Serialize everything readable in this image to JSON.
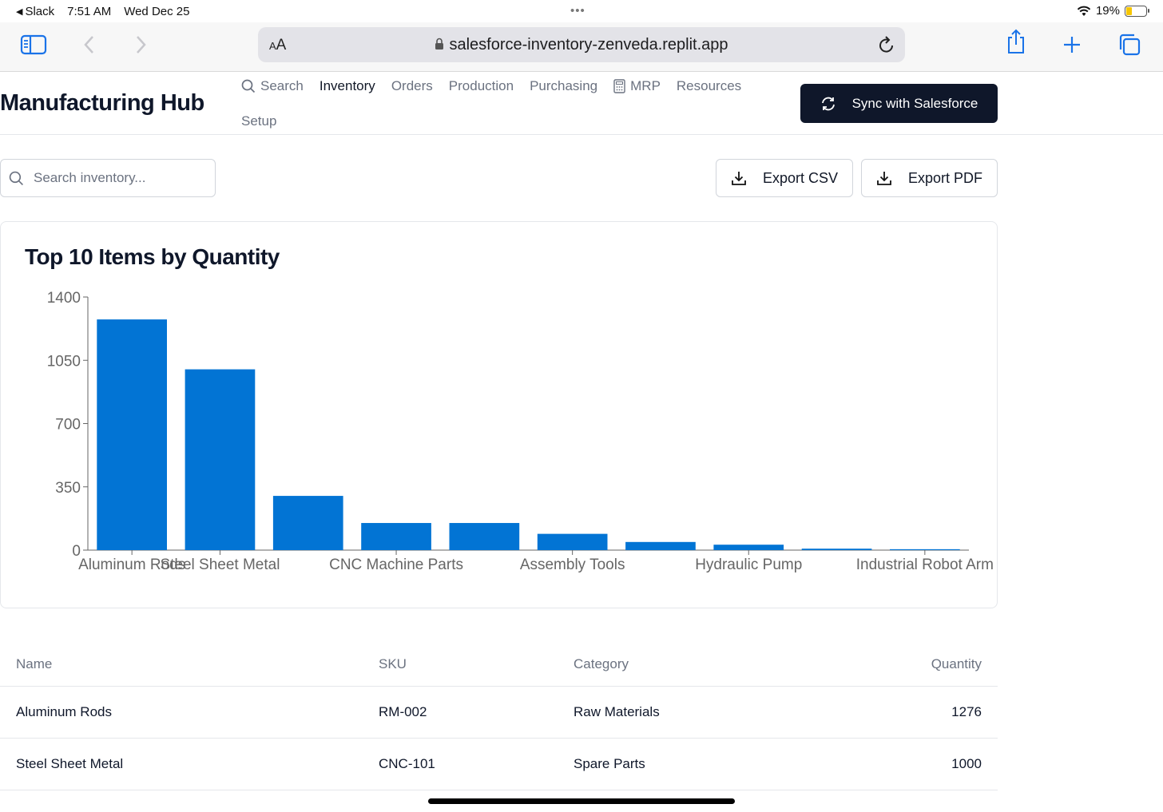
{
  "status_bar": {
    "back_app": "Slack",
    "time": "7:51 AM",
    "date": "Wed Dec 25",
    "battery": "19%"
  },
  "browser": {
    "aa_label_small": "A",
    "aa_label_large": "A",
    "url": "salesforce-inventory-zenveda.replit.app"
  },
  "app": {
    "title": "Manufacturing Hub",
    "nav": {
      "search": "Search",
      "inventory": "Inventory",
      "orders": "Orders",
      "production": "Production",
      "purchasing": "Purchasing",
      "mrp": "MRP",
      "resources": "Resources",
      "setup": "Setup"
    },
    "active_nav": "Inventory",
    "sync_label": "Sync with Salesforce"
  },
  "toolbar": {
    "search_placeholder": "Search inventory...",
    "export_csv": "Export CSV",
    "export_pdf": "Export PDF"
  },
  "chart_card": {
    "title": "Top 10 Items by Quantity"
  },
  "chart_data": {
    "type": "bar",
    "title": "Top 10 Items by Quantity",
    "categories": [
      "Aluminum Rods",
      "Steel Sheet Metal",
      "",
      "CNC Machine Parts",
      "",
      "Assembly Tools",
      "",
      "Hydraulic Pump",
      "",
      "Industrial Robot Arm"
    ],
    "values": [
      1276,
      1000,
      300,
      150,
      150,
      90,
      45,
      30,
      8,
      5
    ],
    "ylim": [
      0,
      1400
    ],
    "yticks": [
      0,
      350,
      700,
      1050,
      1400
    ],
    "visible_tick_labels": [
      "Steel Sheet Metal",
      "CNC Machine Parts",
      "Assembly Tools",
      "Hydraulic Pump",
      "Industrial Robot Arm"
    ],
    "bar_color": "#0274d4",
    "grid": false,
    "xlabel": "",
    "ylabel": ""
  },
  "table": {
    "headers": {
      "name": "Name",
      "sku": "SKU",
      "category": "Category",
      "quantity": "Quantity"
    },
    "rows": [
      {
        "name": "Aluminum Rods",
        "sku": "RM-002",
        "category": "Raw Materials",
        "quantity": "1276"
      },
      {
        "name": "Steel Sheet Metal",
        "sku": "CNC-101",
        "category": "Spare Parts",
        "quantity": "1000"
      }
    ]
  },
  "colors": {
    "accent": "#0274d4",
    "primary_button": "#0f172a",
    "safari_blue": "#1a73e8"
  }
}
